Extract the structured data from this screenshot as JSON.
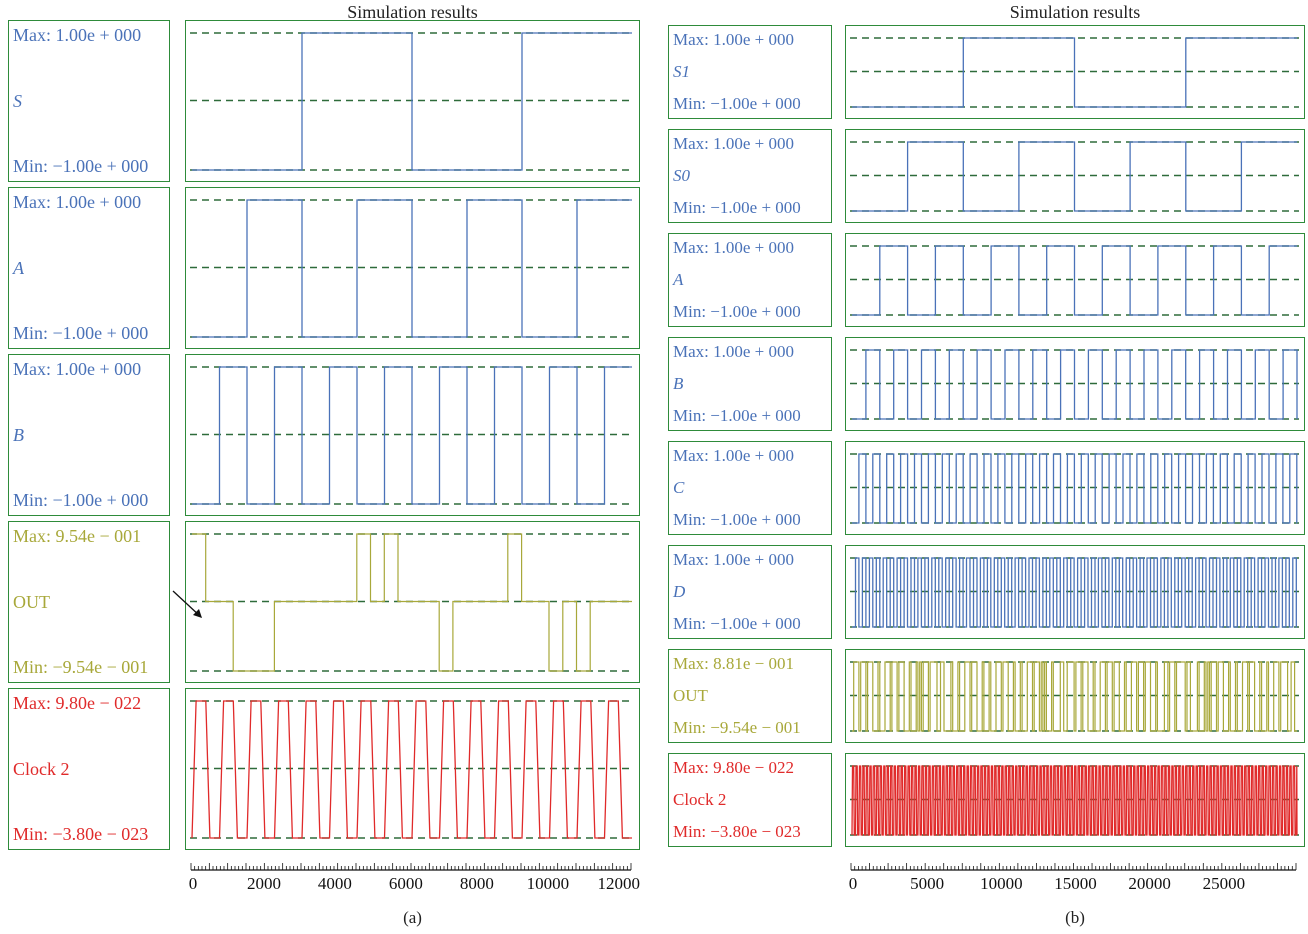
{
  "colors": {
    "frame": "#2e8b3a",
    "dashed": "#2e6b3a",
    "blue": "#4a72b8",
    "olive": "#a8a83a",
    "red": "#e02a2a"
  },
  "panels": [
    {
      "title": "Simulation results",
      "caption": "(a)",
      "xaxis": {
        "ticks": [
          "0",
          "2000",
          "4000",
          "6000",
          "8000",
          "10000",
          "12000"
        ],
        "tick_values": [
          0,
          2000,
          4000,
          6000,
          8000,
          10000,
          12000
        ],
        "xlim": [
          0,
          12400
        ]
      },
      "signals": [
        {
          "max_label": "Max: 1.00e + 000",
          "name": "S",
          "name_italic": true,
          "min_label": "Min: −1.00e + 000",
          "color_key": "blue",
          "shape": "square",
          "period": 6200,
          "duty": 0.5,
          "phase": 3100,
          "start_level": "low"
        },
        {
          "max_label": "Max: 1.00e + 000",
          "name": "A",
          "name_italic": true,
          "min_label": "Min: −1.00e + 000",
          "color_key": "blue",
          "shape": "square",
          "period": 3100,
          "duty": 0.5,
          "phase": 1550,
          "start_level": "low"
        },
        {
          "max_label": "Max: 1.00e + 000",
          "name": "B",
          "name_italic": true,
          "min_label": "Min: −1.00e + 000",
          "color_key": "blue",
          "shape": "square",
          "period": 1550,
          "duty": 0.5,
          "phase": 775,
          "start_level": "low"
        },
        {
          "max_label": "Max: 9.54e − 001",
          "name": "OUT",
          "name_italic": false,
          "min_label": "Min: −9.54e − 001",
          "color_key": "olive",
          "shape": "out_a",
          "arrow": true
        },
        {
          "max_label": "Max: 9.80e − 022",
          "name": "Clock 2",
          "name_italic": false,
          "min_label": "Min: −3.80e − 023",
          "color_key": "red",
          "shape": "trapezoid",
          "period": 775
        }
      ]
    },
    {
      "title": "Simulation results",
      "caption": "(b)",
      "xaxis": {
        "ticks": [
          "0",
          "5000",
          "10000",
          "15000",
          "20000",
          "25000"
        ],
        "tick_values": [
          0,
          5000,
          10000,
          15000,
          20000,
          25000
        ],
        "xlim": [
          0,
          30000
        ]
      },
      "signals": [
        {
          "max_label": "Max: 1.00e + 000",
          "name": "S1",
          "name_italic": true,
          "min_label": "Min: −1.00e + 000",
          "color_key": "blue",
          "shape": "square",
          "period": 15000,
          "duty": 0.5,
          "phase": 7500,
          "start_level": "low"
        },
        {
          "max_label": "Max: 1.00e + 000",
          "name": "S0",
          "name_italic": true,
          "min_label": "Min: −1.00e + 000",
          "color_key": "blue",
          "shape": "square",
          "period": 7500,
          "duty": 0.5,
          "phase": 3750,
          "start_level": "low"
        },
        {
          "max_label": "Max: 1.00e + 000",
          "name": "A",
          "name_italic": true,
          "min_label": "Min: −1.00e + 000",
          "color_key": "blue",
          "shape": "square",
          "period": 3750,
          "duty": 0.5,
          "phase": 1875,
          "start_level": "low"
        },
        {
          "max_label": "Max: 1.00e + 000",
          "name": "B",
          "name_italic": true,
          "min_label": "Min: −1.00e + 000",
          "color_key": "blue",
          "shape": "square",
          "period": 1875,
          "duty": 0.5,
          "phase": 937,
          "start_level": "low"
        },
        {
          "max_label": "Max: 1.00e + 000",
          "name": "C",
          "name_italic": true,
          "min_label": "Min: −1.00e + 000",
          "color_key": "blue",
          "shape": "square",
          "period": 937,
          "duty": 0.5,
          "phase": 468,
          "start_level": "low"
        },
        {
          "max_label": "Max: 1.00e + 000",
          "name": "D",
          "name_italic": true,
          "min_label": "Min: −1.00e + 000",
          "color_key": "blue",
          "shape": "square",
          "period": 468,
          "duty": 0.5,
          "phase": 234,
          "start_level": "low"
        },
        {
          "max_label": "Max: 8.81e − 001",
          "name": "OUT",
          "name_italic": false,
          "min_label": "Min: −9.54e − 001",
          "color_key": "olive",
          "shape": "out_b"
        },
        {
          "max_label": "Max: 9.80e − 022",
          "name": "Clock 2",
          "name_italic": false,
          "min_label": "Min: −3.80e − 023",
          "color_key": "red",
          "shape": "trapezoid",
          "period": 234
        }
      ]
    }
  ],
  "chart_data": [
    {
      "type": "line",
      "title": "Simulation results",
      "xlim": [
        0,
        12400
      ],
      "series": [
        {
          "name": "S",
          "ylim": [
            -1.0,
            1.0
          ],
          "values_desc": "square wave, high from ~3100 to ~6200 and from ~9300 onward"
        },
        {
          "name": "A",
          "ylim": [
            -1.0,
            1.0
          ],
          "values_desc": "square wave, period ~3100"
        },
        {
          "name": "B",
          "ylim": [
            -1.0,
            1.0
          ],
          "values_desc": "square wave, period ~1550"
        },
        {
          "name": "OUT",
          "ylim": [
            -0.954,
            0.954
          ]
        },
        {
          "name": "Clock 2",
          "ylim": [
            -3.8e-23,
            9.8e-22
          ]
        }
      ]
    },
    {
      "type": "line",
      "title": "Simulation results",
      "xlim": [
        0,
        30000
      ],
      "series": [
        {
          "name": "S1",
          "ylim": [
            -1.0,
            1.0
          ]
        },
        {
          "name": "S0",
          "ylim": [
            -1.0,
            1.0
          ]
        },
        {
          "name": "A",
          "ylim": [
            -1.0,
            1.0
          ]
        },
        {
          "name": "B",
          "ylim": [
            -1.0,
            1.0
          ]
        },
        {
          "name": "C",
          "ylim": [
            -1.0,
            1.0
          ]
        },
        {
          "name": "D",
          "ylim": [
            -1.0,
            1.0
          ]
        },
        {
          "name": "OUT",
          "ylim": [
            -0.954,
            0.881
          ]
        },
        {
          "name": "Clock 2",
          "ylim": [
            -3.8e-23,
            9.8e-22
          ]
        }
      ]
    }
  ]
}
